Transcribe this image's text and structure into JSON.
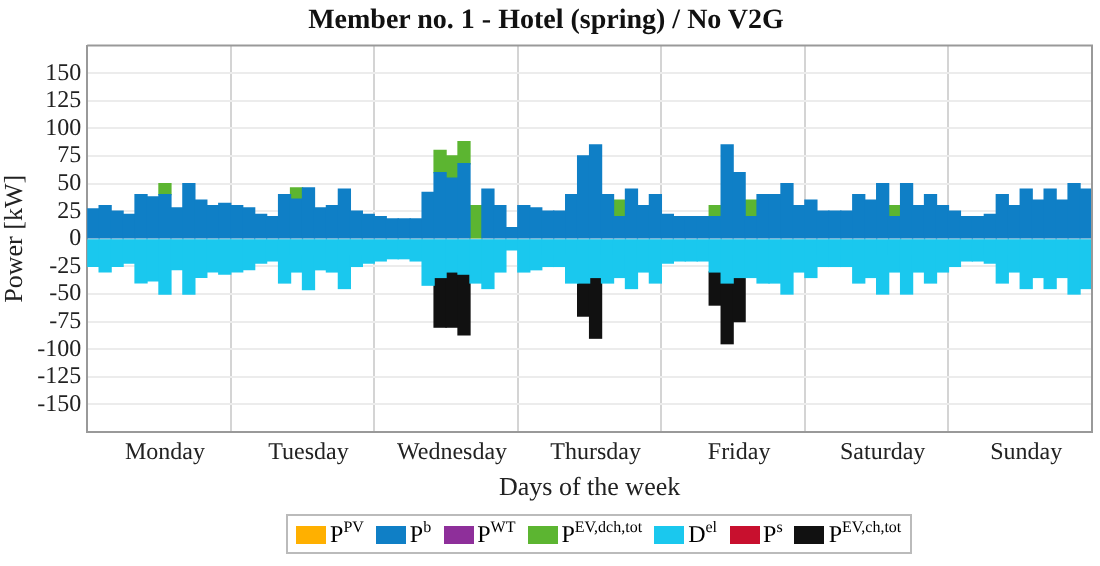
{
  "chart_data": {
    "type": "bar",
    "stacked": true,
    "title": "Member no. 1 - Hotel (spring) / No V2G",
    "xlabel": "Days of the week",
    "ylabel": "Power [kW]",
    "legend": "bottom",
    "grid": true,
    "categories": [
      null,
      null,
      null,
      null,
      null,
      null,
      "Monday",
      null,
      null,
      null,
      null,
      null,
      null,
      null,
      null,
      null,
      null,
      null,
      "Tuesday",
      null,
      null,
      null,
      null,
      null,
      null,
      null,
      null,
      null,
      null,
      null,
      "Wednesday",
      null,
      null,
      null,
      null,
      null,
      null,
      null,
      null,
      null,
      null,
      null,
      "Thursday",
      null,
      null,
      null,
      null,
      null,
      null,
      null,
      null,
      null,
      null,
      null,
      "Friday",
      null,
      null,
      null,
      null,
      null,
      null,
      null,
      null,
      null,
      null,
      null,
      "Saturday",
      null,
      null,
      null,
      null,
      null,
      null,
      null,
      null,
      null,
      null,
      null,
      "Sunday",
      null,
      null,
      null,
      null,
      null
    ],
    "ylim": [
      -175,
      175
    ],
    "yticks": [
      -150,
      -125,
      -100,
      -75,
      -50,
      -25,
      0,
      25,
      50,
      75,
      100,
      125,
      150
    ],
    "series": [
      {
        "name": "P$^{PV}$",
        "color": "#ffb000",
        "values": [
          null,
          null,
          null,
          null,
          null,
          null,
          null,
          null,
          null,
          null,
          null,
          null,
          null,
          null,
          null,
          null,
          null,
          null,
          null,
          null,
          null,
          null,
          null,
          null,
          null,
          null,
          null,
          null,
          null,
          null,
          null,
          null,
          null,
          null,
          null,
          null,
          null,
          null,
          null,
          null,
          null,
          null,
          null,
          null,
          null,
          null,
          null,
          null,
          null,
          null,
          null,
          null,
          null,
          null,
          null,
          null,
          null,
          null,
          null,
          null,
          null,
          null,
          null,
          null,
          null,
          null,
          null,
          null,
          null,
          null,
          null,
          null,
          null,
          null,
          null,
          null,
          null,
          null,
          null,
          null,
          null,
          null,
          null,
          null
        ]
      },
      {
        "name": "P$^{b}$",
        "color": "#0f7fc6",
        "values": [
          27,
          30,
          25,
          22,
          40,
          38,
          40,
          28,
          50,
          35,
          30,
          32,
          30,
          28,
          22,
          20,
          40,
          36,
          46,
          28,
          30,
          45,
          25,
          22,
          20,
          18,
          18,
          18,
          42,
          60,
          55,
          68,
          null,
          45,
          30,
          10,
          30,
          28,
          25,
          25,
          40,
          75,
          85,
          40,
          20,
          45,
          30,
          40,
          22,
          20,
          20,
          20,
          20,
          85,
          60,
          20,
          40,
          40,
          50,
          30,
          35,
          25,
          25,
          25,
          40,
          35,
          50,
          20,
          50,
          30,
          40,
          30,
          25,
          20,
          20,
          22,
          40,
          30,
          45,
          35,
          45,
          35,
          50,
          45
        ]
      },
      {
        "name": "P$^{WT}$",
        "color": "#8e2f9a",
        "values": [
          null,
          null,
          null,
          null,
          null,
          null,
          null,
          null,
          null,
          null,
          null,
          null,
          null,
          null,
          null,
          null,
          null,
          null,
          null,
          null,
          null,
          null,
          null,
          null,
          null,
          null,
          null,
          null,
          null,
          null,
          null,
          null,
          null,
          null,
          null,
          null,
          null,
          null,
          null,
          null,
          null,
          null,
          null,
          null,
          null,
          null,
          null,
          null,
          null,
          null,
          null,
          null,
          null,
          null,
          null,
          null,
          null,
          null,
          null,
          null,
          null,
          null,
          null,
          null,
          null,
          null,
          null,
          null,
          null,
          null,
          null,
          null,
          null,
          null,
          null,
          null,
          null,
          null,
          null,
          null,
          null,
          null,
          null,
          null
        ]
      },
      {
        "name": "P$^{EV,dch,tot}$",
        "color": "#5cb531",
        "values": [
          null,
          null,
          null,
          null,
          null,
          null,
          10,
          null,
          null,
          null,
          null,
          null,
          null,
          null,
          null,
          null,
          null,
          10,
          null,
          null,
          null,
          null,
          null,
          null,
          null,
          null,
          null,
          null,
          null,
          20,
          20,
          20,
          30,
          null,
          null,
          null,
          null,
          null,
          null,
          null,
          null,
          null,
          null,
          null,
          15,
          null,
          null,
          null,
          null,
          null,
          null,
          null,
          10,
          null,
          null,
          15,
          null,
          null,
          null,
          null,
          null,
          null,
          null,
          null,
          null,
          null,
          null,
          10,
          null,
          null,
          null,
          null,
          null,
          null,
          null,
          null,
          null,
          null,
          null,
          null,
          null,
          null,
          null,
          null
        ]
      },
      {
        "name": "D$^{el}$",
        "color": "#1ac8ee",
        "values": [
          -25,
          -30,
          -25,
          -22,
          -40,
          -38,
          -50,
          -28,
          -50,
          -35,
          -30,
          -32,
          -30,
          -28,
          -22,
          -20,
          -40,
          -30,
          -46,
          -28,
          -30,
          -45,
          -25,
          -22,
          -20,
          -18,
          -18,
          -20,
          -42,
          -35,
          -30,
          -32,
          -40,
          -45,
          -30,
          -10,
          -30,
          -28,
          -25,
          -25,
          -40,
          -40,
          -35,
          -40,
          -35,
          -45,
          -30,
          -40,
          -22,
          -20,
          -20,
          -20,
          -30,
          -40,
          -35,
          -35,
          -40,
          -40,
          -50,
          -30,
          -35,
          -25,
          -25,
          -25,
          -40,
          -35,
          -50,
          -30,
          -50,
          -30,
          -40,
          -30,
          -25,
          -20,
          -20,
          -22,
          -40,
          -30,
          -45,
          -35,
          -45,
          -35,
          -50,
          -45
        ]
      },
      {
        "name": "P$^{s}$",
        "color": "#c8102e",
        "values": [
          null,
          null,
          null,
          null,
          null,
          null,
          null,
          null,
          null,
          null,
          null,
          null,
          null,
          null,
          null,
          null,
          null,
          null,
          null,
          null,
          null,
          null,
          null,
          null,
          null,
          null,
          null,
          null,
          null,
          null,
          null,
          null,
          null,
          null,
          null,
          null,
          null,
          null,
          null,
          null,
          null,
          null,
          null,
          null,
          null,
          null,
          null,
          null,
          null,
          null,
          null,
          null,
          null,
          null,
          null,
          null,
          null,
          null,
          null,
          null,
          null,
          null,
          null,
          null,
          null,
          null,
          null,
          null,
          null,
          null,
          null,
          null,
          null,
          null,
          null,
          null,
          null,
          null,
          null,
          null,
          null,
          null,
          null,
          null
        ]
      },
      {
        "name": "P$^{EV,ch,tot}$",
        "color": "#111111",
        "values": [
          null,
          null,
          null,
          null,
          null,
          null,
          null,
          null,
          null,
          null,
          null,
          null,
          null,
          null,
          null,
          null,
          null,
          null,
          null,
          null,
          null,
          null,
          null,
          null,
          null,
          null,
          null,
          null,
          null,
          -45,
          -50,
          -55,
          null,
          null,
          null,
          null,
          null,
          null,
          null,
          null,
          null,
          -30,
          -55,
          null,
          null,
          null,
          null,
          null,
          null,
          null,
          null,
          null,
          -30,
          -55,
          -40,
          null,
          null,
          null,
          null,
          null,
          null,
          null,
          null,
          null,
          null,
          null,
          null,
          null,
          null,
          null,
          null,
          null,
          null,
          null,
          null,
          null,
          null,
          null,
          null,
          null,
          null,
          null,
          null,
          null
        ]
      }
    ]
  }
}
